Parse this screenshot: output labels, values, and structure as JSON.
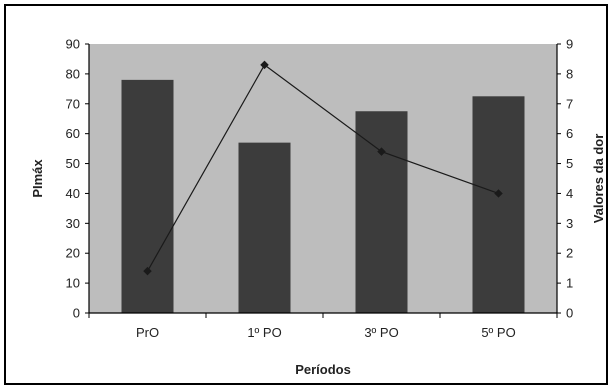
{
  "chart_data": {
    "type": "bar",
    "categories": [
      "PrO",
      "1º PO",
      "3º PO",
      "5º PO"
    ],
    "xlabel": "Períodos",
    "ylabel": "PImáx",
    "y2label": "Valores da dor",
    "ylim": [
      0,
      90
    ],
    "y2lim": [
      0,
      9
    ],
    "yticks": [
      0,
      10,
      20,
      30,
      40,
      50,
      60,
      70,
      80,
      90
    ],
    "y2ticks": [
      0,
      1,
      2,
      3,
      4,
      5,
      6,
      7,
      8,
      9
    ],
    "grid": false,
    "series": [
      {
        "type": "bar",
        "axis": "left",
        "values": [
          78,
          57,
          67.5,
          72.5
        ],
        "color": "#3c3c3c"
      },
      {
        "type": "line",
        "axis": "right",
        "values": [
          1.4,
          8.3,
          5.4,
          4.0
        ],
        "color": "#1a1a1a"
      }
    ],
    "plot_background": "#bdbdbd"
  }
}
